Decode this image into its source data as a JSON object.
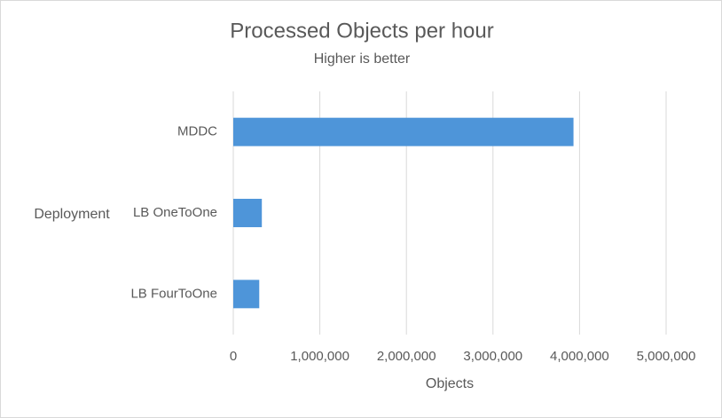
{
  "chart_data": {
    "type": "bar",
    "title": "Processed Objects per hour",
    "subtitle": "Higher is better",
    "x_label": "Objects",
    "y_label": "Deployment",
    "categories": [
      "MDDC",
      "LB OneToOne",
      "LB FourToOne"
    ],
    "values": [
      3930000,
      330000,
      300000
    ],
    "color": "#4e95d9",
    "xlim": [
      0,
      5000000
    ],
    "xticks": [
      0,
      {
        "value": 1000000,
        "label": "1,000,000"
      },
      {
        "value": 2000000,
        "label": "2,000,000"
      },
      {
        "value": 3000000,
        "label": "3,000,000"
      },
      {
        "value": 4000000,
        "label": "4,000,000"
      },
      {
        "value": 5000000,
        "label": "5,000,000"
      }
    ],
    "grid": true
  }
}
